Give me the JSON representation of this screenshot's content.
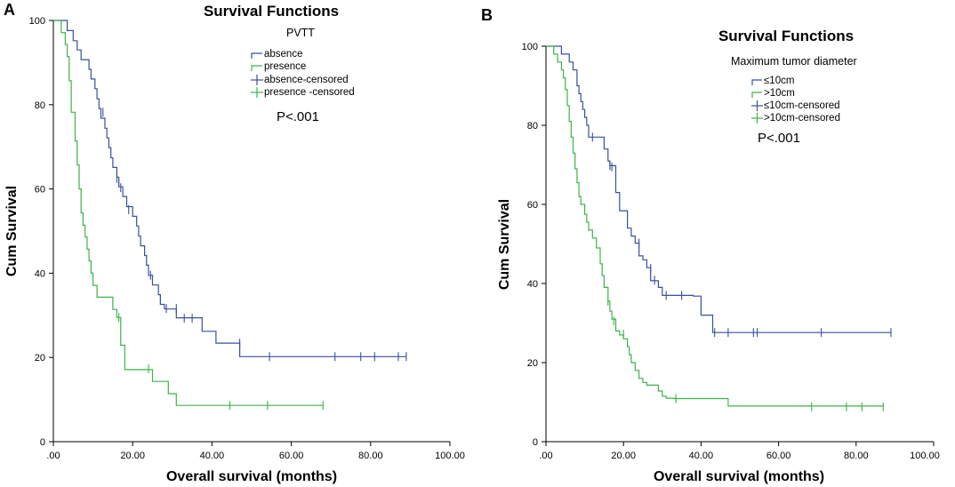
{
  "chart_data": [
    {
      "panel": "A",
      "type": "line",
      "subtype": "kaplan-meier",
      "title": "Survival Functions",
      "xlabel": "Overall survival (months)",
      "ylabel": "Cum Survival",
      "xlim": [
        0,
        100
      ],
      "ylim": [
        0,
        100
      ],
      "xticks": [
        ".00",
        "20.00",
        "40.00",
        "60.00",
        "80.00",
        "100.00"
      ],
      "xtick_values": [
        0,
        20,
        40,
        60,
        80,
        100
      ],
      "yticks": [
        "0",
        "20",
        "40",
        "60",
        "80",
        "100"
      ],
      "ytick_values": [
        0,
        20,
        40,
        60,
        80,
        100
      ],
      "legend_title": "PVTT",
      "legend_position": "top-center",
      "legend": [
        "absence",
        "presence",
        "absence-censored",
        "presence -censored"
      ],
      "annotation": "P<.001",
      "series": [
        {
          "name": "absence",
          "color": "#3a4fa0",
          "steps": [
            [
              0,
              100
            ],
            [
              3.5,
              97.6
            ],
            [
              5,
              95.2
            ],
            [
              6,
              93
            ],
            [
              7,
              90.7
            ],
            [
              9,
              88.4
            ],
            [
              9.5,
              86.1
            ],
            [
              10.5,
              83.8
            ],
            [
              11,
              81.4
            ],
            [
              11.5,
              79.1
            ],
            [
              12,
              76.8
            ],
            [
              13,
              74.4
            ],
            [
              13.5,
              72.1
            ],
            [
              14,
              69.8
            ],
            [
              14.5,
              67.4
            ],
            [
              15,
              65.1
            ],
            [
              16,
              62.8
            ],
            [
              16.5,
              60.5
            ],
            [
              17.5,
              58.2
            ],
            [
              18.5,
              55.8
            ],
            [
              20,
              53.5
            ],
            [
              21,
              51.2
            ],
            [
              21.5,
              48.8
            ],
            [
              22,
              46.5
            ],
            [
              23,
              44.2
            ],
            [
              23.5,
              41.9
            ],
            [
              24,
              39.5
            ],
            [
              25,
              37.2
            ],
            [
              26.5,
              34.9
            ],
            [
              27,
              32.6
            ],
            [
              28,
              31.5
            ],
            [
              31,
              29.4
            ],
            [
              37.5,
              26.2
            ],
            [
              41,
              23.4
            ],
            [
              47,
              20.2
            ]
          ],
          "end_x": 89,
          "censored": [
            [
              12.5,
              78.2
            ],
            [
              16,
              62.5
            ],
            [
              16.5,
              61.5
            ],
            [
              17,
              60.3
            ],
            [
              19,
              55.1
            ],
            [
              24.5,
              39.5
            ],
            [
              27,
              33.6
            ],
            [
              28.5,
              31.6
            ],
            [
              31,
              31.6
            ],
            [
              33,
              29.3
            ],
            [
              35,
              29.3
            ],
            [
              47,
              23.4
            ],
            [
              54.5,
              20.2
            ],
            [
              71,
              20.2
            ],
            [
              77.5,
              20.2
            ],
            [
              81,
              20.2
            ],
            [
              87,
              20.2
            ],
            [
              89,
              20.2
            ]
          ]
        },
        {
          "name": "presence",
          "color": "#3cb34a",
          "steps": [
            [
              0,
              100
            ],
            [
              2,
              97.1
            ],
            [
              3,
              94.3
            ],
            [
              3.5,
              91.4
            ],
            [
              4,
              85.7
            ],
            [
              4.5,
              78.2
            ],
            [
              5.5,
              71.4
            ],
            [
              6,
              65.7
            ],
            [
              6.5,
              60
            ],
            [
              7,
              54.3
            ],
            [
              7.5,
              51.4
            ],
            [
              8,
              48.6
            ],
            [
              8.5,
              45.7
            ],
            [
              9,
              42.9
            ],
            [
              9.5,
              40
            ],
            [
              10,
              37.1
            ],
            [
              11,
              34.3
            ],
            [
              15,
              31.4
            ],
            [
              16,
              29.5
            ],
            [
              17,
              22.9
            ],
            [
              18,
              17.1
            ],
            [
              25,
              14.3
            ],
            [
              29,
              11.4
            ],
            [
              31,
              8.6
            ]
          ],
          "end_x": 68,
          "censored": [
            [
              16.5,
              29.5
            ],
            [
              24,
              17.3
            ],
            [
              44.5,
              8.6
            ],
            [
              54,
              8.6
            ],
            [
              68,
              8.6
            ]
          ]
        }
      ]
    },
    {
      "panel": "B",
      "type": "line",
      "subtype": "kaplan-meier",
      "title": "Survival Functions",
      "xlabel": "Overall survival (months)",
      "ylabel": "Cum Survival",
      "xlim": [
        0,
        100
      ],
      "ylim": [
        0,
        100
      ],
      "xticks": [
        ".00",
        "20.00",
        "40.00",
        "60.00",
        "80.00",
        "100.00"
      ],
      "xtick_values": [
        0,
        20,
        40,
        60,
        80,
        100
      ],
      "yticks": [
        "0",
        "20",
        "40",
        "60",
        "80",
        "100"
      ],
      "ytick_values": [
        0,
        20,
        40,
        60,
        80,
        100
      ],
      "legend_title": "Maximum tumor diameter",
      "legend_position": "top-center",
      "legend": [
        "≤10cm",
        ">10cm",
        "≤10cm-censored",
        ">10cm-censored"
      ],
      "annotation": "P<.001",
      "series": [
        {
          "name": "≤10cm",
          "color": "#3a4fa0",
          "steps": [
            [
              0,
              100
            ],
            [
              4,
              98
            ],
            [
              6,
              96
            ],
            [
              7,
              94
            ],
            [
              8,
              90
            ],
            [
              8.5,
              88
            ],
            [
              9,
              86
            ],
            [
              9.5,
              84
            ],
            [
              10,
              82
            ],
            [
              10.5,
              80
            ],
            [
              11,
              77
            ],
            [
              15,
              74
            ],
            [
              16,
              71
            ],
            [
              16.5,
              69.8
            ],
            [
              18,
              63
            ],
            [
              19,
              58.4
            ],
            [
              21,
              54
            ],
            [
              22,
              52
            ],
            [
              23,
              50.2
            ],
            [
              24,
              47
            ],
            [
              25,
              46
            ],
            [
              26,
              44
            ],
            [
              27,
              40.7
            ],
            [
              29,
              39
            ],
            [
              30,
              37
            ],
            [
              35,
              37
            ],
            [
              38,
              36.8
            ],
            [
              40,
              32
            ],
            [
              43,
              27.6
            ]
          ],
          "end_x": 89,
          "censored": [
            [
              12,
              77
            ],
            [
              16.5,
              69.8
            ],
            [
              17,
              69.5
            ],
            [
              24,
              50.2
            ],
            [
              27,
              43.8
            ],
            [
              28,
              40.8
            ],
            [
              31,
              37
            ],
            [
              35,
              37
            ],
            [
              43.5,
              27.6
            ],
            [
              47,
              27.6
            ],
            [
              53.5,
              27.6
            ],
            [
              54.5,
              27.6
            ],
            [
              71,
              27.6
            ],
            [
              89,
              27.6
            ]
          ]
        },
        {
          "name": ">10cm",
          "color": "#3cb34a",
          "steps": [
            [
              0,
              100
            ],
            [
              2,
              98
            ],
            [
              3,
              96
            ],
            [
              4,
              94
            ],
            [
              4.5,
              92
            ],
            [
              5,
              89
            ],
            [
              5.5,
              85
            ],
            [
              6,
              81
            ],
            [
              6.5,
              77
            ],
            [
              7,
              73
            ],
            [
              7.5,
              69
            ],
            [
              8,
              65.5
            ],
            [
              8.5,
              62
            ],
            [
              9,
              60
            ],
            [
              10,
              57.5
            ],
            [
              10.5,
              55.5
            ],
            [
              11,
              53.5
            ],
            [
              12,
              51.5
            ],
            [
              13,
              49
            ],
            [
              14,
              45
            ],
            [
              14.5,
              42
            ],
            [
              15,
              39
            ],
            [
              16,
              35.5
            ],
            [
              16.5,
              33
            ],
            [
              17,
              31
            ],
            [
              18,
              28
            ],
            [
              19,
              27
            ],
            [
              20,
              26
            ],
            [
              21,
              24
            ],
            [
              21.5,
              22
            ],
            [
              22,
              20
            ],
            [
              23,
              18
            ],
            [
              24,
              16
            ],
            [
              25,
              15
            ],
            [
              26,
              14.3
            ],
            [
              29,
              12.8
            ],
            [
              30,
              11.5
            ],
            [
              31,
              11
            ],
            [
              33,
              10.9
            ],
            [
              47,
              9
            ]
          ],
          "end_x": 87,
          "censored": [
            [
              16,
              35.5
            ],
            [
              17.5,
              30.5
            ],
            [
              20,
              27.2
            ],
            [
              33.5,
              10.9
            ],
            [
              68.5,
              8.8
            ],
            [
              77.5,
              8.8
            ],
            [
              81.5,
              8.8
            ],
            [
              87,
              8.8
            ]
          ]
        }
      ]
    }
  ]
}
